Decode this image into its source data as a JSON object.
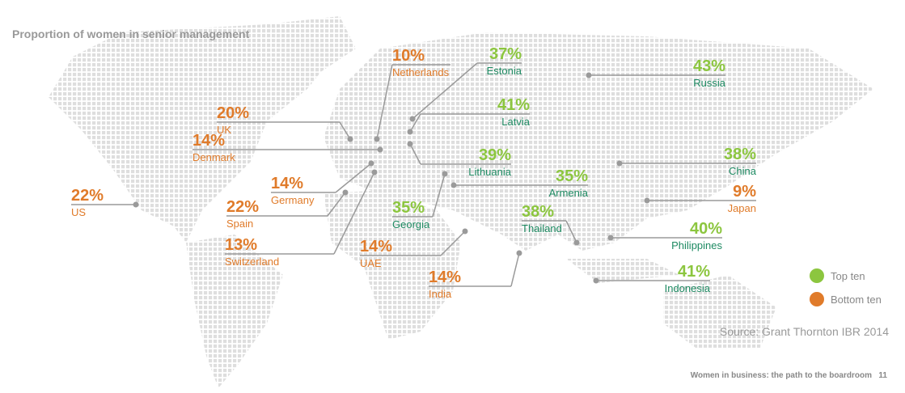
{
  "title": "Proportion of women in senior management",
  "top_color": "#8cc63f",
  "top_name_color": "#1e8a62",
  "bottom_color": "#e07b2a",
  "top_ten": [
    {
      "name": "Russia",
      "value": 43,
      "value_label": "43%"
    },
    {
      "name": "Estonia",
      "value": 37,
      "value_label": "37%"
    },
    {
      "name": "Latvia",
      "value": 41,
      "value_label": "41%"
    },
    {
      "name": "Lithuania",
      "value": 39,
      "value_label": "39%"
    },
    {
      "name": "China",
      "value": 38,
      "value_label": "38%"
    },
    {
      "name": "Armenia",
      "value": 35,
      "value_label": "35%"
    },
    {
      "name": "Georgia",
      "value": 35,
      "value_label": "35%"
    },
    {
      "name": "Thailand",
      "value": 38,
      "value_label": "38%"
    },
    {
      "name": "Philippines",
      "value": 40,
      "value_label": "40%"
    },
    {
      "name": "Indonesia",
      "value": 41,
      "value_label": "41%"
    }
  ],
  "bottom_ten": [
    {
      "name": "Netherlands",
      "value": 10,
      "value_label": "10%"
    },
    {
      "name": "UK",
      "value": 20,
      "value_label": "20%"
    },
    {
      "name": "Denmark",
      "value": 14,
      "value_label": "14%"
    },
    {
      "name": "Germany",
      "value": 14,
      "value_label": "14%"
    },
    {
      "name": "US",
      "value": 22,
      "value_label": "22%"
    },
    {
      "name": "Spain",
      "value": 22,
      "value_label": "22%"
    },
    {
      "name": "Switzerland",
      "value": 13,
      "value_label": "13%"
    },
    {
      "name": "UAE",
      "value": 14,
      "value_label": "14%"
    },
    {
      "name": "India",
      "value": 14,
      "value_label": "14%"
    },
    {
      "name": "Japan",
      "value": 9,
      "value_label": "9%"
    }
  ],
  "legend": {
    "top": "Top ten",
    "bottom": "Bottom ten"
  },
  "source": "Source: Grant Thornton IBR 2014",
  "footer": {
    "text": "Women in business: the path to the boardroom",
    "page": 11
  }
}
